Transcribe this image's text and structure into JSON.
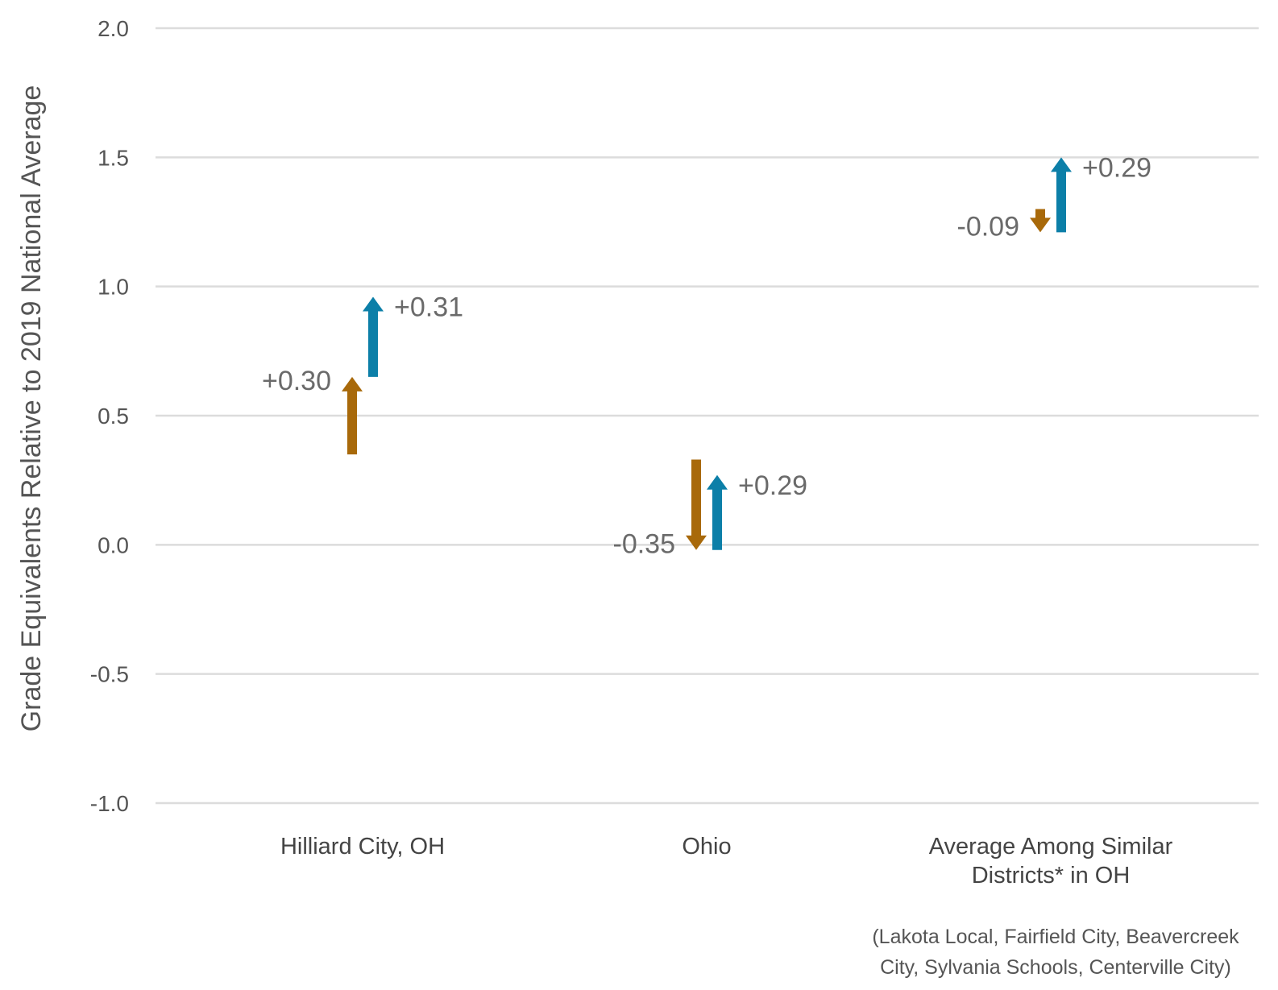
{
  "chart_data": {
    "type": "arrow",
    "ylabel": "Grade Equivalents Relative to 2019 National Average",
    "ylim": [
      -1.0,
      2.0
    ],
    "yticks": [
      "-1.0",
      "-0.5",
      "0.0",
      "0.5",
      "1.0",
      "1.5",
      "2.0"
    ],
    "grid": true,
    "categories": [
      [
        "Hilliard City, OH"
      ],
      [
        "Ohio"
      ],
      [
        "Average Among Similar",
        "Districts* in OH"
      ]
    ],
    "series": [
      {
        "color": "#a8690a",
        "arrows": [
          {
            "from": 0.35,
            "to": 0.65,
            "label": "+0.30"
          },
          {
            "from": 0.33,
            "to": -0.02,
            "label": "-0.35"
          },
          {
            "from": 1.3,
            "to": 1.21,
            "label": "-0.09"
          }
        ]
      },
      {
        "color": "#0c7fa8",
        "arrows": [
          {
            "from": 0.65,
            "to": 0.96,
            "label": "+0.31"
          },
          {
            "from": -0.02,
            "to": 0.27,
            "label": "+0.29"
          },
          {
            "from": 1.21,
            "to": 1.5,
            "label": "+0.29"
          }
        ]
      }
    ],
    "footnote": [
      "(Lakota Local, Fairfield City, Beavercreek",
      "City, Sylvania Schools, Centerville City)"
    ]
  }
}
